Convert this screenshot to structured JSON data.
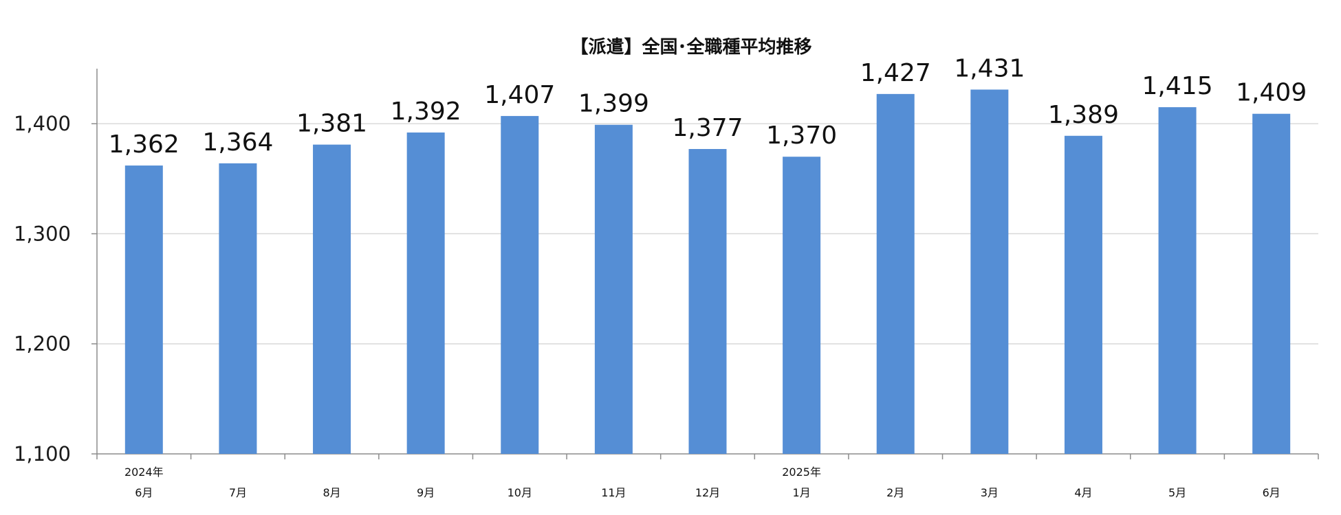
{
  "chart_data": {
    "type": "bar",
    "title": "【派遣】全国･全職種平均推移",
    "categories": [
      "6月",
      "7月",
      "8月",
      "9月",
      "10月",
      "11月",
      "12月",
      "1月",
      "2月",
      "3月",
      "4月",
      "5月",
      "6月"
    ],
    "year_labels": [
      "2024年",
      "",
      "",
      "",
      "",
      "",
      "",
      "2025年",
      "",
      "",
      "",
      "",
      ""
    ],
    "series": [
      {
        "values": [
          1362,
          1364,
          1381,
          1392,
          1407,
          1399,
          1377,
          1370,
          1427,
          1431,
          1389,
          1415,
          1409
        ],
        "data_labels": [
          "1,362",
          "1,364",
          "1,381",
          "1,392",
          "1,407",
          "1,399",
          "1,377",
          "1,370",
          "1,427",
          "1,431",
          "1,389",
          "1,415",
          "1,409"
        ],
        "color": "#558ED5"
      }
    ],
    "ylim": [
      1100,
      1450
    ],
    "yticks": [
      1100,
      1200,
      1300,
      1400
    ],
    "ytick_labels": [
      "1,100",
      "1,200",
      "1,300",
      "1,400"
    ],
    "grid": true,
    "legend": "none",
    "xlabel": "",
    "ylabel": ""
  },
  "colors": {
    "bar": "#558ED5",
    "grid": "#d9d9d9",
    "axis": "#8c8c8c"
  }
}
